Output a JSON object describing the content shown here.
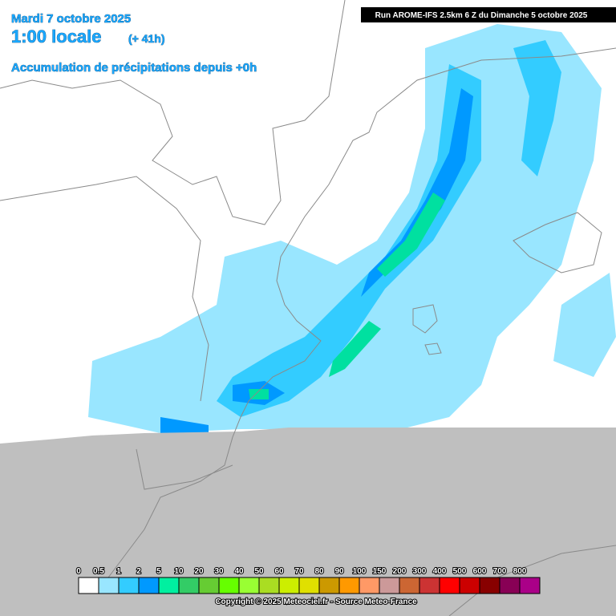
{
  "header": {
    "date": "Mardi 7 octobre 2025",
    "time": "1:00 locale",
    "lead": "(+ 41h)",
    "product": "Accumulation de précipitations depuis +0h"
  },
  "run": "Run AROME-IFS 2.5km 6 Z du Dimanche 5 octobre 2025",
  "legend": {
    "labels": [
      "0",
      "0.5",
      "1",
      "2",
      "5",
      "10",
      "20",
      "30",
      "40",
      "50",
      "60",
      "70",
      "80",
      "90",
      "100",
      "150",
      "200",
      "300",
      "400",
      "500",
      "600",
      "700",
      "800"
    ],
    "colors": [
      "#ffffff",
      "#99e6ff",
      "#33ccff",
      "#0099ff",
      "#00f0a0",
      "#33cc66",
      "#66cc33",
      "#66ff00",
      "#99ff33",
      "#aadd22",
      "#ccee00",
      "#e0e000",
      "#cc9900",
      "#ff9900",
      "#ff9966",
      "#cc9999",
      "#cc6633",
      "#cc3333",
      "#ff0000",
      "#cc0000",
      "#880000",
      "#880055",
      "#aa0088"
    ]
  },
  "footer": "Copyright © 2025 Meteociel.fr - Source Meteo-France"
}
